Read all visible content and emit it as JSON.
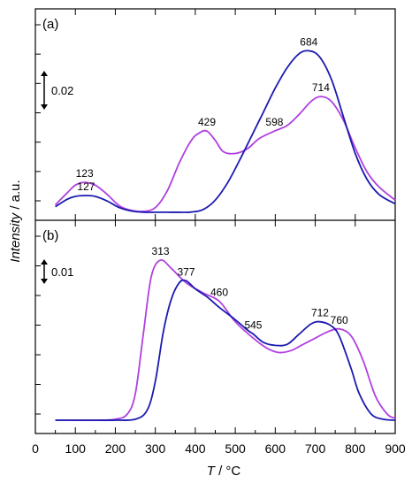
{
  "chart_data": {
    "type": "line",
    "xlabel": "T / °C",
    "ylabel": "Intensity / a.u.",
    "xlim": [
      0,
      900
    ],
    "xticks": [
      0,
      100,
      200,
      300,
      400,
      500,
      600,
      700,
      800,
      900
    ],
    "grid": false,
    "colors": {
      "purple": "#b040e0",
      "blue": "#1a1ab0"
    },
    "panels": [
      {
        "label": "(a)",
        "scale_bar": "0.02",
        "ylim": [
          0,
          1.0
        ],
        "series": [
          {
            "color": "purple",
            "x": [
              50,
              80,
              100,
              123,
              150,
              180,
              210,
              240,
              270,
              300,
              330,
              360,
              390,
              410,
              429,
              450,
              470,
              500,
              530,
              560,
              598,
              630,
              660,
              690,
              714,
              740,
              770,
              800,
              830,
              860,
              900
            ],
            "y": [
              0.045,
              0.11,
              0.15,
              0.165,
              0.15,
              0.1,
              0.04,
              0.015,
              0.01,
              0.03,
              0.12,
              0.27,
              0.39,
              0.43,
              0.44,
              0.39,
              0.33,
              0.32,
              0.345,
              0.4,
              0.44,
              0.47,
              0.53,
              0.6,
              0.625,
              0.6,
              0.5,
              0.35,
              0.22,
              0.14,
              0.07
            ]
          },
          {
            "color": "blue",
            "x": [
              50,
              80,
              100,
              127,
              150,
              180,
              210,
              240,
              270,
              300,
              330,
              360,
              390,
              420,
              450,
              480,
              510,
              540,
              570,
              600,
              630,
              660,
              684,
              710,
              740,
              770,
              800,
              830,
              860,
              900
            ],
            "y": [
              0.035,
              0.075,
              0.09,
              0.095,
              0.09,
              0.065,
              0.03,
              0.012,
              0.005,
              0.005,
              0.005,
              0.005,
              0.006,
              0.02,
              0.07,
              0.16,
              0.28,
              0.41,
              0.54,
              0.67,
              0.78,
              0.855,
              0.87,
              0.84,
              0.72,
              0.52,
              0.32,
              0.18,
              0.1,
              0.05
            ]
          }
        ],
        "annotations": [
          {
            "text": "123",
            "x": 123,
            "y": 0.165,
            "color": "purple"
          },
          {
            "text": "127",
            "x": 127,
            "y": 0.095,
            "color": "blue"
          },
          {
            "text": "429",
            "x": 429,
            "y": 0.44,
            "color": "purple"
          },
          {
            "text": "598",
            "x": 598,
            "y": 0.44,
            "color": "purple"
          },
          {
            "text": "684",
            "x": 684,
            "y": 0.87,
            "color": "blue"
          },
          {
            "text": "714",
            "x": 714,
            "y": 0.625,
            "color": "purple"
          }
        ]
      },
      {
        "label": "(b)",
        "scale_bar": "0.01",
        "ylim": [
          0,
          1.0
        ],
        "series": [
          {
            "color": "purple",
            "x": [
              50,
              100,
              150,
              200,
              230,
              250,
              270,
              290,
              313,
              340,
              377,
              420,
              460,
              500,
              545,
              580,
              610,
              640,
              670,
              700,
              730,
              760,
              790,
              820,
              850,
              880,
              900
            ],
            "y": [
              0.03,
              0.03,
              0.03,
              0.035,
              0.06,
              0.16,
              0.45,
              0.73,
              0.81,
              0.77,
              0.7,
              0.65,
              0.61,
              0.51,
              0.43,
              0.38,
              0.36,
              0.37,
              0.4,
              0.43,
              0.46,
              0.475,
              0.44,
              0.32,
              0.15,
              0.06,
              0.04
            ]
          },
          {
            "color": "blue",
            "x": [
              50,
              100,
              150,
              200,
              250,
              280,
              300,
              320,
              340,
              360,
              377,
              400,
              430,
              460,
              500,
              530,
              545,
              570,
              600,
              630,
              660,
              690,
              712,
              740,
              760,
              790,
              810,
              840,
              870,
              900
            ],
            "y": [
              0.03,
              0.03,
              0.03,
              0.03,
              0.035,
              0.08,
              0.22,
              0.46,
              0.62,
              0.7,
              0.71,
              0.67,
              0.63,
              0.58,
              0.52,
              0.47,
              0.45,
              0.41,
              0.395,
              0.4,
              0.45,
              0.5,
              0.51,
              0.49,
              0.44,
              0.28,
              0.16,
              0.06,
              0.035,
              0.03
            ]
          }
        ],
        "annotations": [
          {
            "text": "313",
            "x": 313,
            "y": 0.81,
            "color": "purple"
          },
          {
            "text": "377",
            "x": 377,
            "y": 0.71,
            "color": "blue"
          },
          {
            "text": "460",
            "x": 460,
            "y": 0.61,
            "color": "purple"
          },
          {
            "text": "545",
            "x": 545,
            "y": 0.45,
            "color": "blue"
          },
          {
            "text": "712",
            "x": 712,
            "y": 0.51,
            "color": "blue"
          },
          {
            "text": "760",
            "x": 760,
            "y": 0.475,
            "color": "purple"
          }
        ]
      }
    ]
  }
}
